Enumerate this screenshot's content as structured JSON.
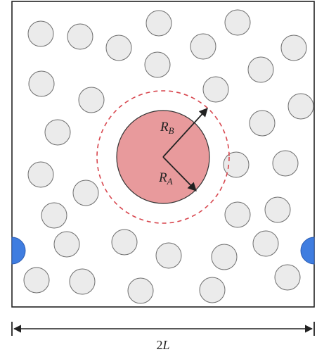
{
  "labels": {
    "radius_b_main": "R",
    "radius_b_sub": "B",
    "radius_a_main": "R",
    "radius_a_sub": "A",
    "width_prefix": "2",
    "width_var": "L"
  },
  "colors": {
    "box_stroke": "#222222",
    "particle_fill": "#ebebeb",
    "particle_stroke": "#6e6e6e",
    "central_fill": "#e89a9c",
    "central_stroke": "#333333",
    "dashed_circle": "#d8474f",
    "wall_particle_fill": "#3f7de0",
    "arrow": "#222222"
  }
}
